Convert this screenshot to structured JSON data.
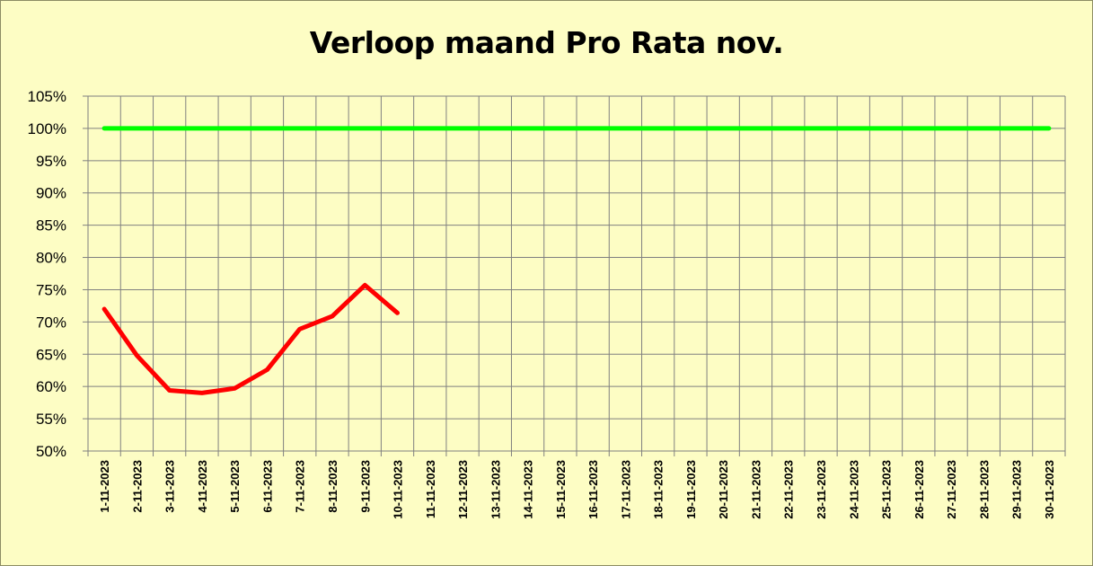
{
  "chart_data": {
    "type": "line",
    "title": "Verloop maand Pro Rata nov.",
    "xlabel": "",
    "ylabel": "",
    "ylim": [
      0.5,
      1.05
    ],
    "y_tick_values": [
      0.5,
      0.55,
      0.6,
      0.65,
      0.7,
      0.75,
      0.8,
      0.85,
      0.9,
      0.95,
      1.0,
      1.05
    ],
    "y_tick_labels": [
      "50%",
      "55%",
      "60%",
      "65%",
      "70%",
      "75%",
      "80%",
      "85%",
      "90%",
      "95%",
      "100%",
      "105%"
    ],
    "categories": [
      "1-11-2023",
      "2-11-2023",
      "3-11-2023",
      "4-11-2023",
      "5-11-2023",
      "6-11-2023",
      "7-11-2023",
      "8-11-2023",
      "9-11-2023",
      "10-11-2023",
      "11-11-2023",
      "12-11-2023",
      "13-11-2023",
      "14-11-2023",
      "15-11-2023",
      "16-11-2023",
      "17-11-2023",
      "18-11-2023",
      "19-11-2023",
      "20-11-2023",
      "21-11-2023",
      "22-11-2023",
      "23-11-2023",
      "24-11-2023",
      "25-11-2023",
      "26-11-2023",
      "27-11-2023",
      "28-11-2023",
      "29-11-2023",
      "30-11-2023"
    ],
    "series": [
      {
        "color": "#ff0000",
        "values": [
          0.72,
          0.648,
          0.594,
          0.59,
          0.597,
          0.626,
          0.689,
          0.709,
          0.757,
          0.714,
          null,
          null,
          null,
          null,
          null,
          null,
          null,
          null,
          null,
          null,
          null,
          null,
          null,
          null,
          null,
          null,
          null,
          null,
          null,
          null
        ]
      },
      {
        "color": "#00ff00",
        "values": [
          1.0,
          1.0,
          1.0,
          1.0,
          1.0,
          1.0,
          1.0,
          1.0,
          1.0,
          1.0,
          1.0,
          1.0,
          1.0,
          1.0,
          1.0,
          1.0,
          1.0,
          1.0,
          1.0,
          1.0,
          1.0,
          1.0,
          1.0,
          1.0,
          1.0,
          1.0,
          1.0,
          1.0,
          1.0,
          1.0
        ]
      }
    ],
    "grid": true,
    "legend": "none",
    "colors": {
      "background": "#fdfdc4",
      "gridline": "#808080"
    }
  }
}
